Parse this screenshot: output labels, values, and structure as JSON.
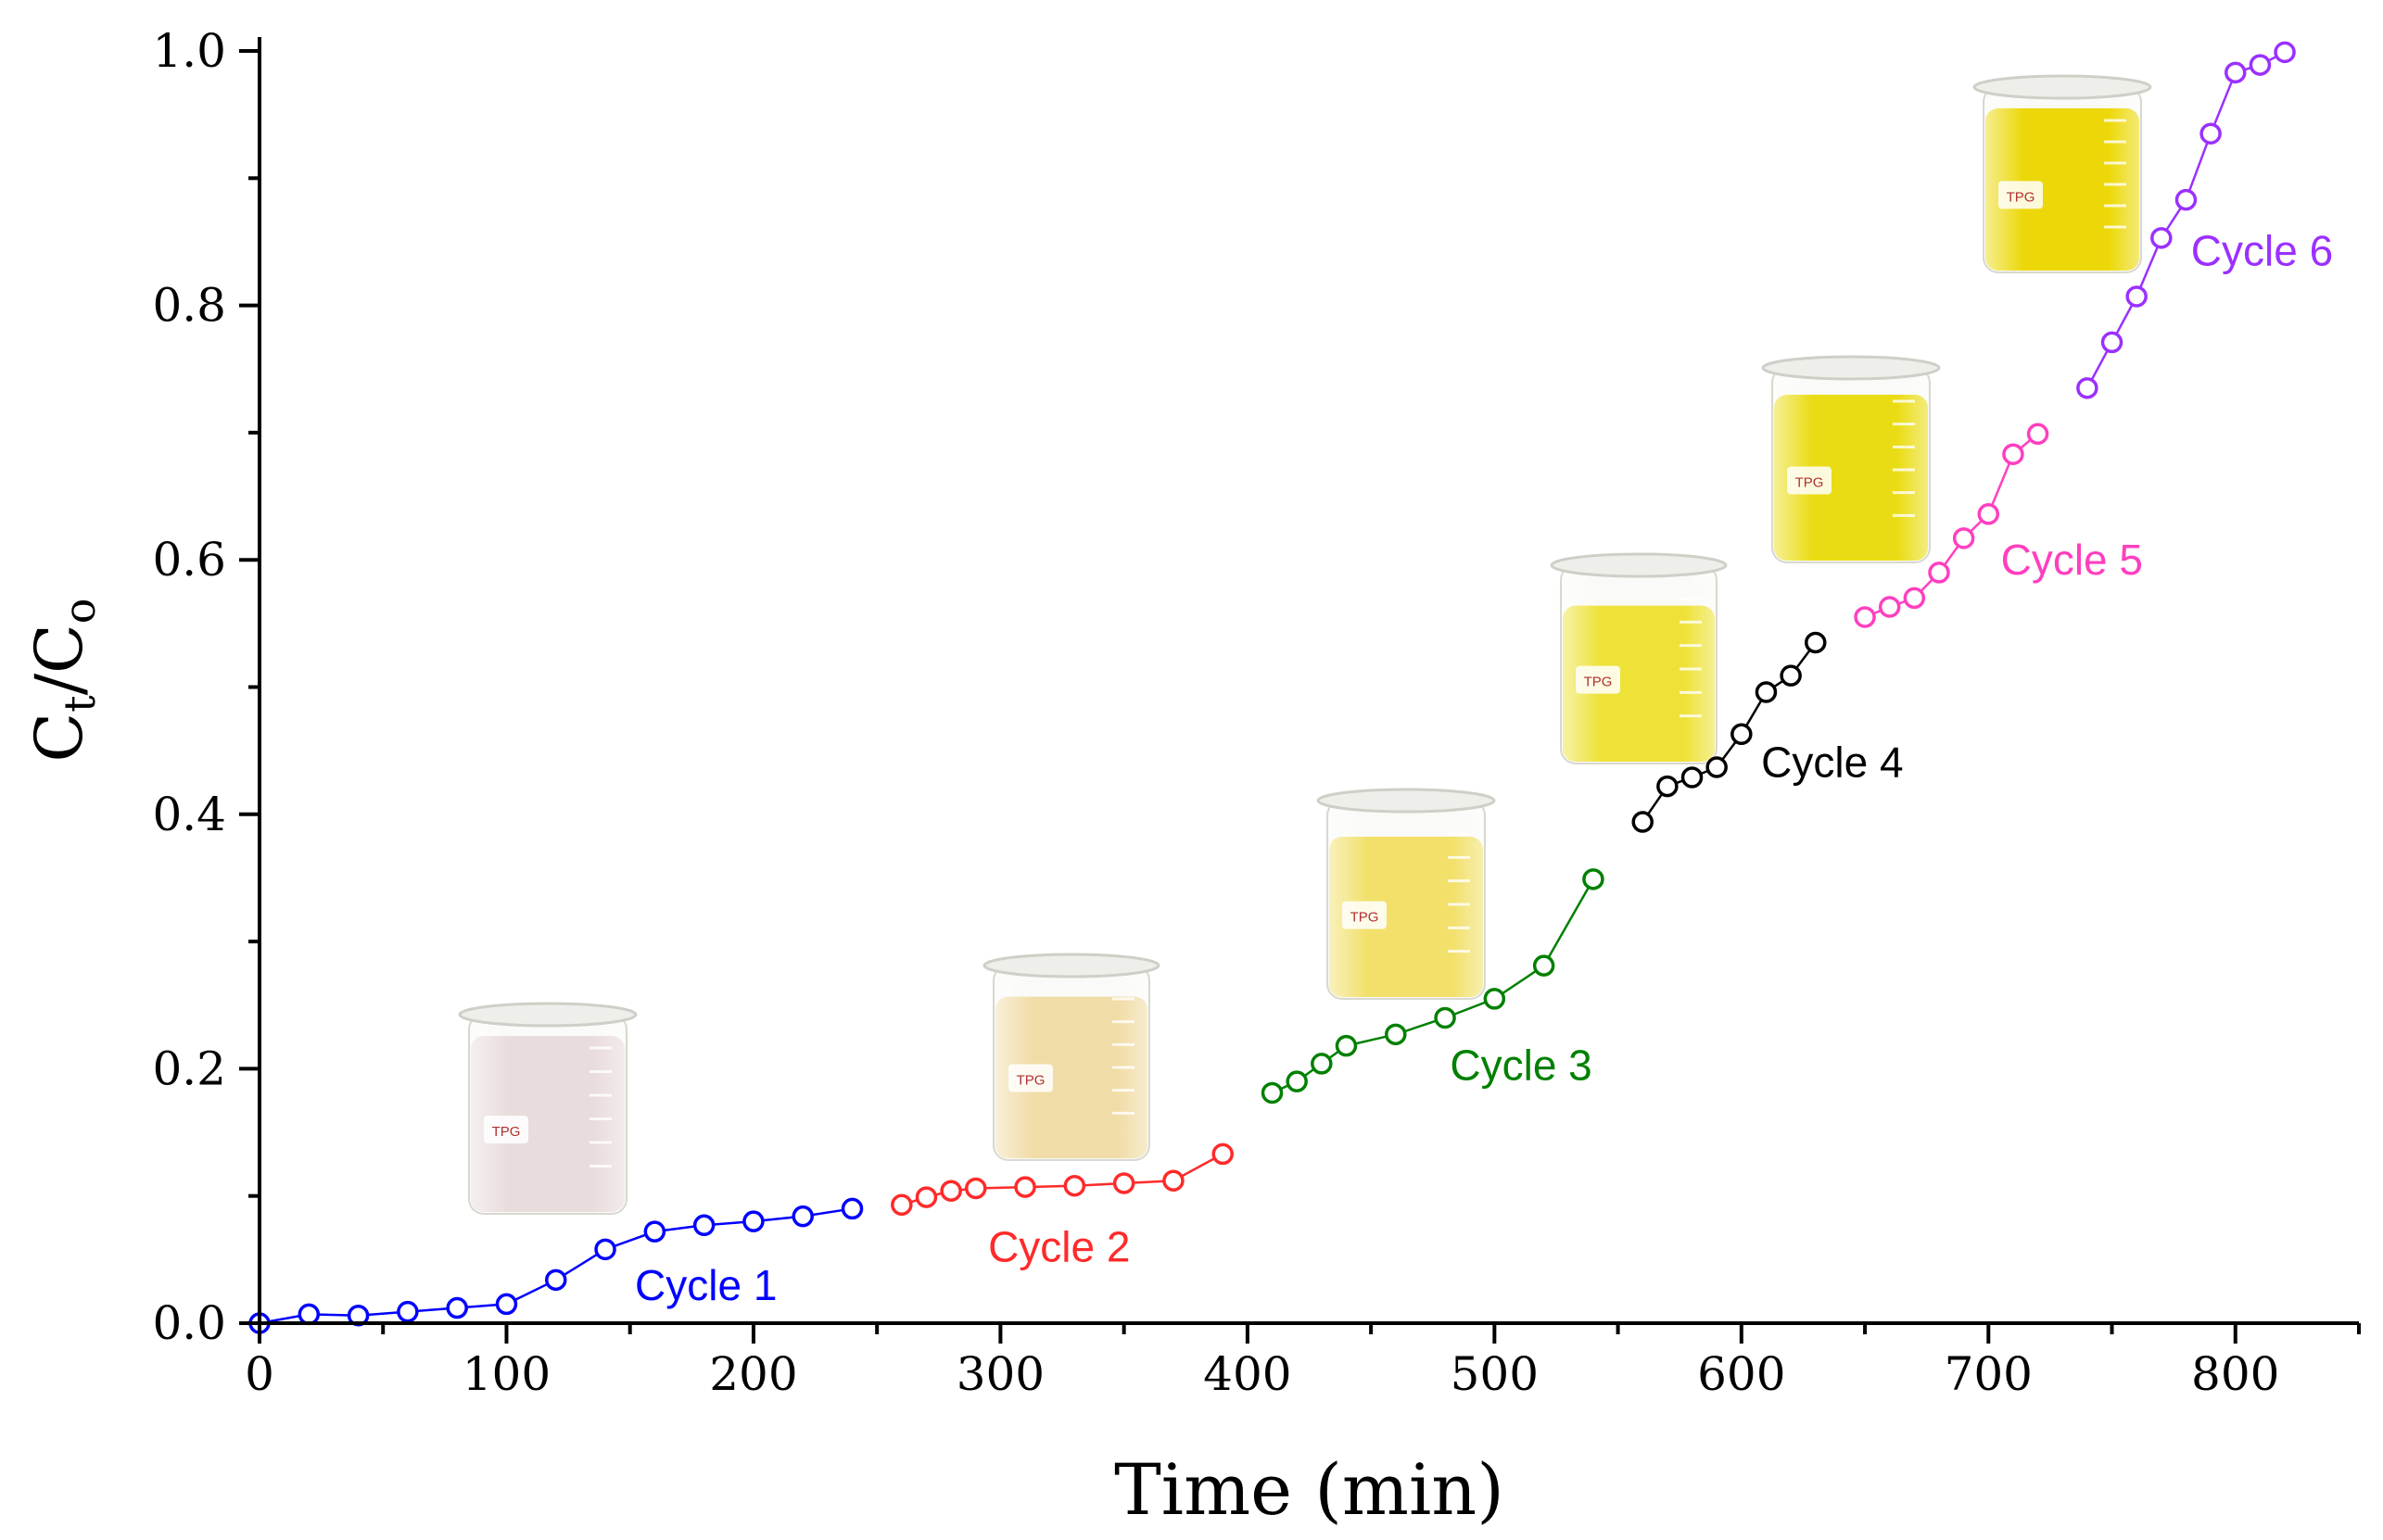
{
  "chart_data": {
    "type": "line",
    "title": "",
    "xlabel": "Time (min)",
    "ylabel": {
      "main": "C",
      "sub_t": "t",
      "slash": "/",
      "main2": "C",
      "sub_o": "o"
    },
    "xlim": [
      0,
      850
    ],
    "ylim": [
      0,
      1.0
    ],
    "xticks": [
      0,
      100,
      200,
      300,
      400,
      500,
      600,
      700,
      800
    ],
    "yticks": [
      0.0,
      0.2,
      0.4,
      0.6,
      0.8,
      1.0
    ],
    "xtick_labels": [
      "0",
      "100",
      "200",
      "300",
      "400",
      "500",
      "600",
      "700",
      "800"
    ],
    "ytick_labels": [
      "0.0",
      "0.2",
      "0.4",
      "0.6",
      "0.8",
      "1.0"
    ],
    "series": [
      {
        "name": "Cycle 1",
        "color": "#0000ff",
        "label_at": [
          152,
          0.03
        ],
        "x": [
          0,
          20,
          40,
          60,
          80,
          100,
          120,
          140,
          160,
          180,
          200,
          220,
          240
        ],
        "y": [
          0.0,
          0.007,
          0.006,
          0.009,
          0.012,
          0.015,
          0.034,
          0.058,
          0.072,
          0.077,
          0.08,
          0.084,
          0.09
        ]
      },
      {
        "name": "Cycle 2",
        "color": "#ff2a2a",
        "label_at": [
          295,
          0.06
        ],
        "x": [
          260,
          270,
          280,
          290,
          310,
          330,
          350,
          370,
          390
        ],
        "y": [
          0.093,
          0.099,
          0.104,
          0.106,
          0.107,
          0.108,
          0.11,
          0.112,
          0.133
        ]
      },
      {
        "name": "Cycle 3",
        "color": "#008000",
        "label_at": [
          482,
          0.203
        ],
        "x": [
          410,
          420,
          430,
          440,
          460,
          480,
          500,
          520,
          540
        ],
        "y": [
          0.181,
          0.19,
          0.204,
          0.218,
          0.227,
          0.24,
          0.255,
          0.281,
          0.349
        ]
      },
      {
        "name": "Cycle 4",
        "color": "#000000",
        "label_at": [
          608,
          0.441
        ],
        "x": [
          560,
          570,
          580,
          590,
          600,
          610,
          620,
          630
        ],
        "y": [
          0.394,
          0.422,
          0.429,
          0.437,
          0.463,
          0.496,
          0.509,
          0.535
        ]
      },
      {
        "name": "Cycle 5",
        "color": "#ff3fbf",
        "label_at": [
          705,
          0.6
        ],
        "x": [
          650,
          660,
          670,
          680,
          690,
          700,
          710,
          720
        ],
        "y": [
          0.555,
          0.563,
          0.57,
          0.59,
          0.617,
          0.636,
          0.683,
          0.699
        ]
      },
      {
        "name": "Cycle 6",
        "color": "#9b30ff",
        "label_at": [
          782,
          0.843
        ],
        "x": [
          740,
          750,
          760,
          770,
          780,
          790,
          800,
          810,
          820
        ],
        "y": [
          0.735,
          0.771,
          0.807,
          0.853,
          0.883,
          0.935,
          0.983,
          0.989,
          0.999
        ]
      }
    ],
    "insets": [
      {
        "name": "beaker-cycle-1",
        "label": "TPG",
        "tint": "#e9dcdc",
        "fill_level": 0.85
      },
      {
        "name": "beaker-cycle-2",
        "label": "TPG",
        "tint": "#f0dca6",
        "fill_level": 0.8
      },
      {
        "name": "beaker-cycle-3",
        "label": "TPG",
        "tint": "#f2e06a",
        "fill_level": 0.78
      },
      {
        "name": "beaker-cycle-4",
        "label": "TPG",
        "tint": "#eee238",
        "fill_level": 0.76
      },
      {
        "name": "beaker-cycle-5",
        "label": "TPG",
        "tint": "#eadc14",
        "fill_level": 0.82
      },
      {
        "name": "beaker-cycle-6",
        "label": "TPG",
        "tint": "#ecd808",
        "fill_level": 0.84
      }
    ]
  }
}
